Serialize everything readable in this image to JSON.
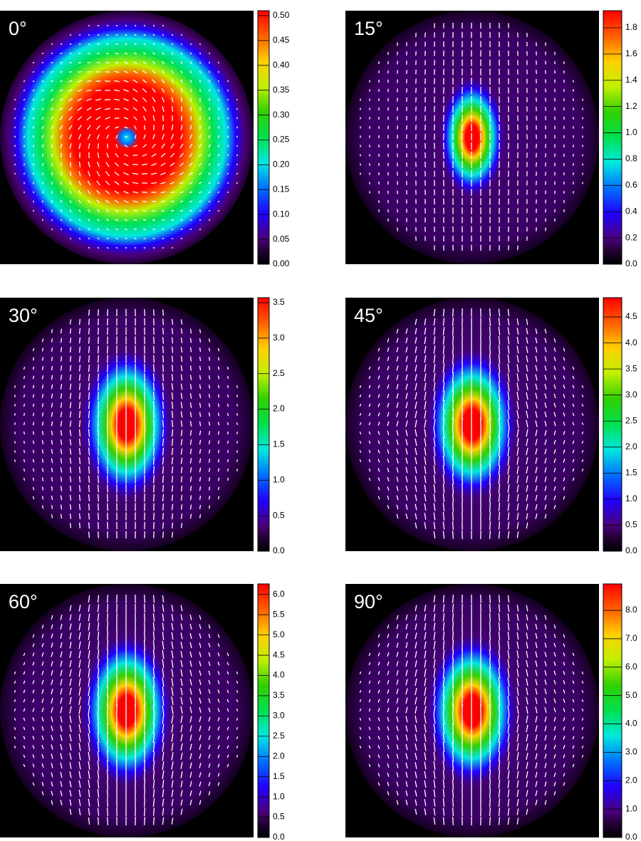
{
  "chart_data": [
    {
      "type": "heatmap",
      "title": "0°",
      "clim": [
        0,
        0.51
      ],
      "cticks": [
        {
          "value": 0,
          "label": "0.00"
        },
        0.05,
        {
          "value": 0.1,
          "label": "0.10"
        },
        0.15,
        {
          "value": 0.2,
          "label": "0.20"
        },
        0.25,
        {
          "value": 0.3,
          "label": "0.30"
        },
        0.35,
        {
          "value": 0.4,
          "label": "0.40"
        },
        0.45,
        {
          "value": 0.5,
          "label": "0.50"
        }
      ]
    },
    {
      "type": "heatmap",
      "title": "15°",
      "clim": [
        0,
        1.93
      ],
      "cticks": [
        {
          "value": 0,
          "label": "0.0"
        },
        0.2,
        0.4,
        0.6,
        0.8,
        {
          "value": 1,
          "label": "1.0"
        },
        1.2,
        1.4,
        1.6,
        1.8
      ]
    },
    {
      "type": "heatmap",
      "title": "30°",
      "clim": [
        0,
        3.57
      ],
      "cticks": [
        {
          "value": 0,
          "label": "0.0"
        },
        0.5,
        {
          "value": 1,
          "label": "1.0"
        },
        1.5,
        {
          "value": 2,
          "label": "2.0"
        },
        2.5,
        {
          "value": 3,
          "label": "3.0"
        },
        3.5
      ]
    },
    {
      "type": "heatmap",
      "title": "45°",
      "clim": [
        0,
        4.87
      ],
      "cticks": [
        {
          "value": 0,
          "label": "0.0"
        },
        0.5,
        {
          "value": 1,
          "label": "1.0"
        },
        1.5,
        {
          "value": 2,
          "label": "2.0"
        },
        2.5,
        {
          "value": 3,
          "label": "3.0"
        },
        3.5,
        {
          "value": 4,
          "label": "4.0"
        },
        4.5
      ]
    },
    {
      "type": "heatmap",
      "title": "60°",
      "clim": [
        0,
        6.26
      ],
      "cticks": [
        {
          "value": 0,
          "label": "0.0"
        },
        0.5,
        {
          "value": 1,
          "label": "1.0"
        },
        1.5,
        {
          "value": 2,
          "label": "2.0"
        },
        2.5,
        {
          "value": 3,
          "label": "3.0"
        },
        3.5,
        {
          "value": 4,
          "label": "4.0"
        },
        4.5,
        {
          "value": 5,
          "label": "5.0"
        },
        5.5,
        {
          "value": 6,
          "label": "6.0"
        }
      ]
    },
    {
      "type": "heatmap",
      "title": "90°",
      "clim": [
        0,
        8.93
      ],
      "cticks": [
        {
          "value": 0,
          "label": "0.0"
        },
        {
          "value": 1,
          "label": "1.0"
        },
        {
          "value": 2,
          "label": "2.0"
        },
        {
          "value": 3,
          "label": "3.0"
        },
        {
          "value": 4,
          "label": "4.0"
        },
        {
          "value": 5,
          "label": "5.0"
        },
        {
          "value": 6,
          "label": "6.0"
        },
        {
          "value": 7,
          "label": "7.0"
        },
        {
          "value": 8,
          "label": "8.0"
        }
      ]
    }
  ]
}
